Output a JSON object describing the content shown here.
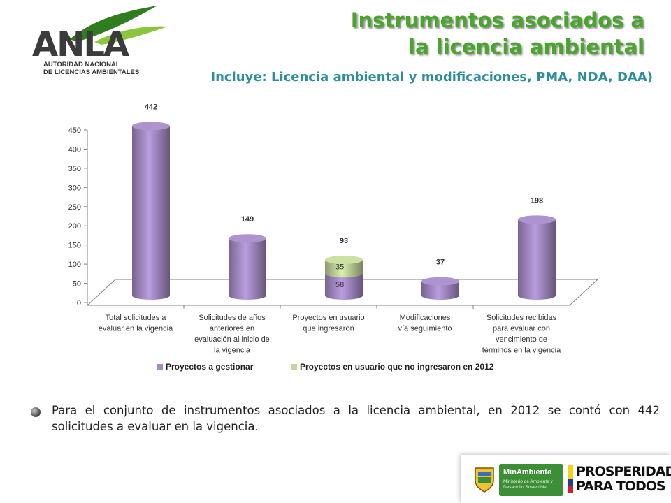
{
  "header": {
    "title_line1": "Instrumentos asociados a",
    "title_line2": "la licencia ambiental",
    "subtitle": "Incluye: Licencia ambiental y modificaciones, PMA, NDA, DAA)"
  },
  "logo": {
    "brand": "ANLA",
    "line1": "AUTORIDAD NACIONAL",
    "line2": "DE LICENCIAS AMBIENTALES"
  },
  "chart_data": {
    "type": "bar",
    "title": "",
    "xlabel": "",
    "ylabel": "",
    "ylim": [
      0,
      450
    ],
    "yticks": [
      0,
      50,
      100,
      150,
      200,
      250,
      300,
      350,
      400,
      450
    ],
    "categories": [
      [
        "Total solicitudes a",
        "evaluar en la vigencia"
      ],
      [
        "Solicitudes de años",
        "anteriores en",
        "evaluación al inicio de",
        "la vigencia"
      ],
      [
        "Proyectos en usuario",
        "que ingresaron"
      ],
      [
        "Modificaciones",
        "vía seguimiento"
      ],
      [
        "Solicitudes recibidas",
        "para evaluar con",
        "vencimiento de",
        "términos en la vigencia"
      ]
    ],
    "series": [
      {
        "name": "Proyectos a gestionar",
        "values": [
          442,
          149,
          58,
          37,
          198
        ],
        "color": "#a58cc6"
      },
      {
        "name": "Proyectos en usuario que no ingresaron en 2012",
        "values": [
          0,
          0,
          35,
          0,
          0
        ],
        "color": "#c3d69b"
      }
    ],
    "segment_labels": [
      null,
      null,
      [
        "58",
        "35"
      ],
      null,
      null
    ],
    "total_labels": [
      "442",
      "149",
      "93",
      "37",
      "198"
    ],
    "legend_position": "bottom",
    "grid": false,
    "style": "3d-cylinder-stacked"
  },
  "paragraph": "Para el conjunto de instrumentos asociados a la licencia ambiental, en 2012 se contó con 442 solicitudes a evaluar en la vigencia.",
  "footer": {
    "minambiente_title": "MinAmbiente",
    "minambiente_sub": "Ministerio de Ambiente y Desarrollo Sostenible",
    "prosperidad_line1": "PROSPERIDAD",
    "prosperidad_line2": "PARA TODOS"
  }
}
